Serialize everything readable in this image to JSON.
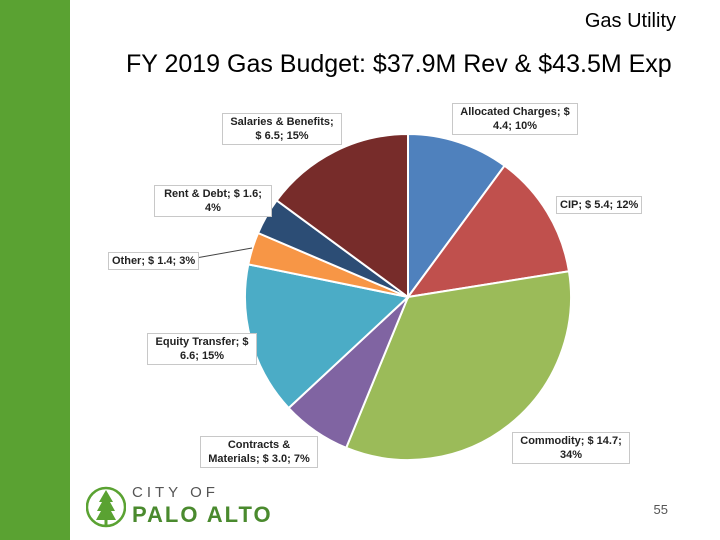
{
  "header": {
    "section": "Gas Utility",
    "title": "FY 2019 Gas Budget: $37.9M Rev & $43.5M Exp"
  },
  "chart_data": {
    "type": "pie",
    "start_angle_deg": 0,
    "direction": "clockwise",
    "slices": [
      {
        "name": "Allocated Charges",
        "value": 4.4,
        "percent": 10,
        "color": "#4f81bd",
        "label": "Allocated Charges; $ 4.4; 10%"
      },
      {
        "name": "CIP",
        "value": 5.4,
        "percent": 12,
        "color": "#c0504d",
        "label": "CIP; $ 5.4; 12%"
      },
      {
        "name": "Commodity",
        "value": 14.7,
        "percent": 34,
        "color": "#9bbb59",
        "label": "Commodity; $ 14.7; 34%"
      },
      {
        "name": "Contracts & Materials",
        "value": 3.0,
        "percent": 7,
        "color": "#8064a2",
        "label": "Contracts & Materials; $ 3.0; 7%"
      },
      {
        "name": "Equity Transfer",
        "value": 6.6,
        "percent": 15,
        "color": "#4bacc6",
        "label": "Equity Transfer; $ 6.6; 15%"
      },
      {
        "name": "Other",
        "value": 1.4,
        "percent": 3,
        "color": "#f79646",
        "label": "Other; $ 1.4; 3%"
      },
      {
        "name": "Rent & Debt",
        "value": 1.6,
        "percent": 4,
        "color": "#2c4d75",
        "label": "Rent & Debt; $ 1.6; 4%"
      },
      {
        "name": "Salaries & Benefits",
        "value": 6.5,
        "percent": 15,
        "color": "#772c2a",
        "label": "Salaries & Benefits; $ 6.5; 15%"
      }
    ]
  },
  "footer": {
    "logo_city": "CITY OF",
    "logo_name": "PALO ALTO",
    "page_number": "55"
  }
}
